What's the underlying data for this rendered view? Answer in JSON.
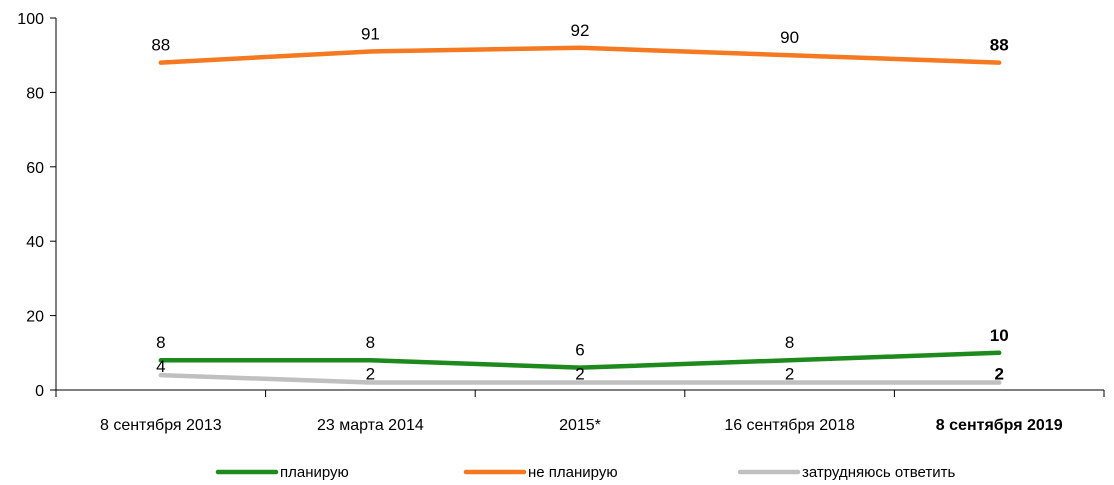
{
  "chart_data": {
    "type": "line",
    "categories": [
      "8 сентября 2013",
      "23 марта 2014",
      "2015*",
      "16 сентября 2018",
      "8 сентября 2019"
    ],
    "highlight_category_index": 4,
    "series": [
      {
        "name": "планирую",
        "values": [
          8,
          8,
          6,
          8,
          10
        ],
        "color": "#1e8a1e"
      },
      {
        "name": "не планирую",
        "values": [
          88,
          91,
          92,
          90,
          88
        ],
        "color": "#f47920"
      },
      {
        "name": "затрудняюсь ответить",
        "values": [
          4,
          2,
          2,
          2,
          2
        ],
        "color": "#c0c0c0"
      }
    ],
    "ylim": [
      0,
      100
    ],
    "yticks": [
      0,
      20,
      40,
      60,
      80,
      100
    ],
    "grid": false,
    "legend_position": "bottom"
  }
}
